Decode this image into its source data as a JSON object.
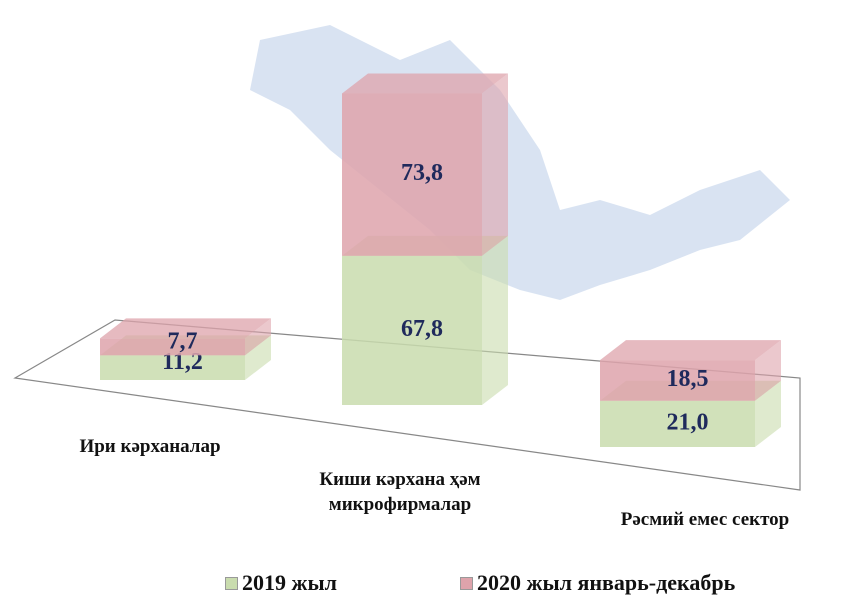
{
  "chart_data": {
    "type": "bar3d-stacked",
    "categories": [
      "Ири кәрханалар",
      "Киши кәрхана ҳәм микрофирмалар",
      "Рәсмий емес сектор"
    ],
    "series": [
      {
        "name": "2019 жыл",
        "color": "#c9dcae",
        "values": [
          11.2,
          67.8,
          21.0
        ],
        "value_labels": [
          "11,2",
          "67,8",
          "21,0"
        ]
      },
      {
        "name": "2020 жыл январь-декабрь",
        "color": "#dea3ab",
        "values": [
          7.7,
          73.8,
          18.5
        ],
        "value_labels": [
          "7,7",
          "73,8",
          "18,5"
        ]
      }
    ]
  }
}
